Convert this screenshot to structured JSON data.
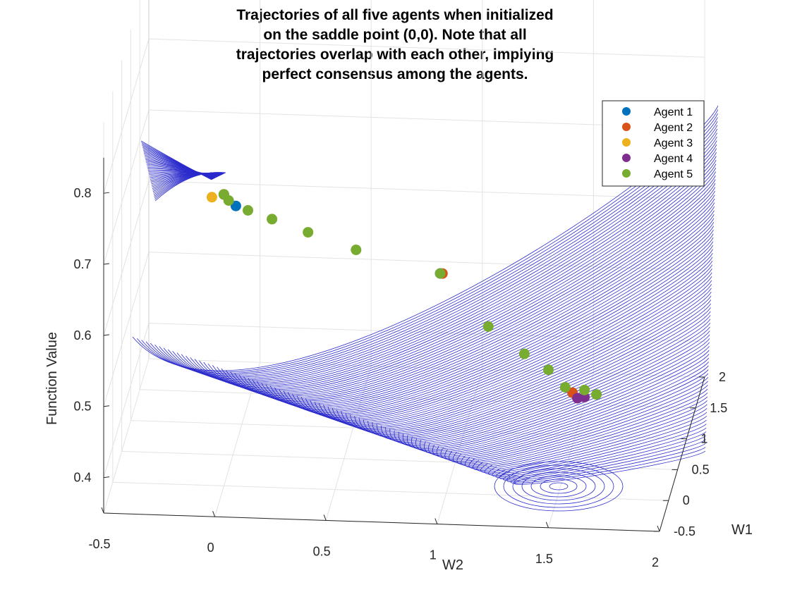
{
  "chart_data": {
    "type": "surface-contour-3d",
    "title": [
      "Trajectories of all five agents when initialized",
      "on the saddle point (0,0). Note that all",
      "trajectories overlap with each other, implying",
      "perfect consensus among the agents."
    ],
    "xlabel": "W2",
    "ylabel": "W1",
    "zlabel": "Function Value",
    "x_ticks": [
      "-0.5",
      "0",
      "0.5",
      "1",
      "1.5",
      "2"
    ],
    "y_ticks": [
      "-0.5",
      "0",
      "0.5",
      "1",
      "1.5",
      "2"
    ],
    "z_ticks": [
      "0.4",
      "0.5",
      "0.6",
      "0.7",
      "0.8"
    ],
    "xlim": [
      -0.5,
      2
    ],
    "ylim": [
      -0.5,
      2
    ],
    "zlim": [
      0.35,
      0.85
    ],
    "contour_color": "#2a2acc",
    "grid": true,
    "legend_position": "top-right",
    "series": [
      {
        "name": "Agent 1",
        "color": "#0072BD",
        "points": [
          [
            0.0,
            0.0,
            0.76
          ],
          [
            0.05,
            0.05,
            0.74
          ],
          [
            0.9,
            0.9,
            0.58
          ]
        ]
      },
      {
        "name": "Agent 2",
        "color": "#D95319",
        "points": [
          [
            0.0,
            0.0,
            0.76
          ],
          [
            0.91,
            0.9,
            0.58
          ],
          [
            1.45,
            1.45,
            0.37
          ]
        ]
      },
      {
        "name": "Agent 3",
        "color": "#EDB120",
        "points": [
          [
            -0.05,
            -0.05,
            0.76
          ],
          [
            0.0,
            0.0,
            0.76
          ]
        ]
      },
      {
        "name": "Agent 4",
        "color": "#7E2F8E",
        "points": [
          [
            1.47,
            1.48,
            0.36
          ],
          [
            1.5,
            1.5,
            0.36
          ]
        ]
      },
      {
        "name": "Agent 5",
        "color": "#77AC30",
        "points": [
          [
            0.0,
            0.0,
            0.76
          ],
          [
            0.02,
            0.02,
            0.75
          ],
          [
            0.1,
            0.1,
            0.73
          ],
          [
            0.2,
            0.2,
            0.71
          ],
          [
            0.35,
            0.35,
            0.68
          ],
          [
            0.55,
            0.55,
            0.64
          ],
          [
            0.9,
            0.9,
            0.58
          ],
          [
            1.1,
            1.1,
            0.49
          ],
          [
            1.25,
            1.25,
            0.44
          ],
          [
            1.35,
            1.35,
            0.41
          ],
          [
            1.42,
            1.42,
            0.38
          ],
          [
            1.5,
            1.5,
            0.37
          ],
          [
            1.55,
            1.55,
            0.36
          ]
        ]
      }
    ]
  }
}
